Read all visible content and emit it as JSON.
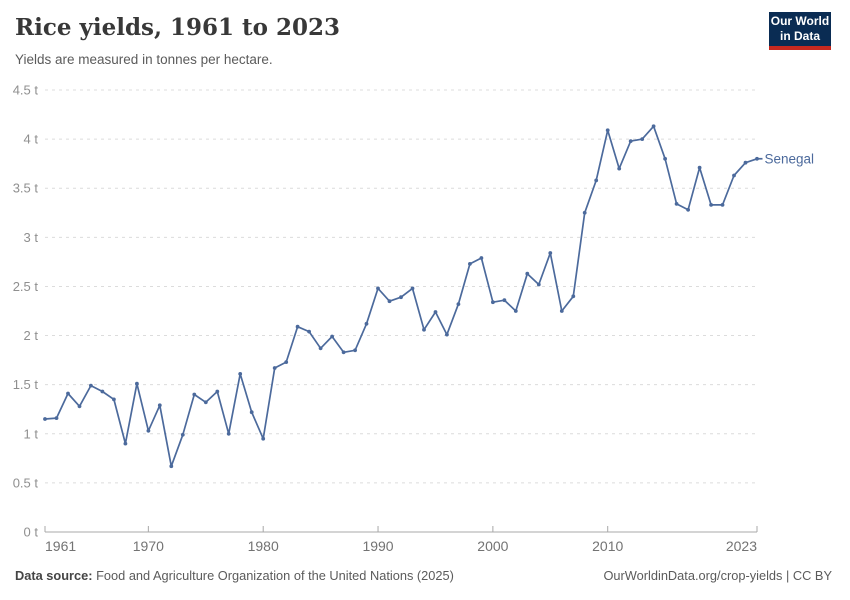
{
  "header": {
    "title": "Rice yields, 1961 to 2023",
    "subtitle": "Yields are measured in tonnes per hectare."
  },
  "logo": {
    "line1": "Our World",
    "line2": "in Data",
    "bg_color": "#0a2c53",
    "accent_color": "#c7291f"
  },
  "chart_data": {
    "type": "line",
    "title": "Rice yields, 1961 to 2023",
    "subtitle": "Yields are measured in tonnes per hectare.",
    "unit": "tonnes per hectare",
    "x_range": [
      1961,
      2023
    ],
    "ylim": [
      0,
      4.5
    ],
    "grid": true,
    "legend_position": "end-label",
    "x": [
      1961,
      1962,
      1963,
      1964,
      1965,
      1966,
      1967,
      1968,
      1969,
      1970,
      1971,
      1972,
      1973,
      1974,
      1975,
      1976,
      1977,
      1978,
      1979,
      1980,
      1981,
      1982,
      1983,
      1984,
      1985,
      1986,
      1987,
      1988,
      1989,
      1990,
      1991,
      1992,
      1993,
      1994,
      1995,
      1996,
      1997,
      1998,
      1999,
      2000,
      2001,
      2002,
      2003,
      2004,
      2005,
      2006,
      2007,
      2008,
      2009,
      2010,
      2011,
      2012,
      2013,
      2014,
      2015,
      2016,
      2017,
      2018,
      2019,
      2020,
      2021,
      2022,
      2023
    ],
    "series": [
      {
        "name": "Senegal",
        "color": "#4c6a9c",
        "values": [
          1.15,
          1.16,
          1.41,
          1.28,
          1.49,
          1.43,
          1.35,
          0.9,
          1.51,
          1.03,
          1.29,
          0.67,
          0.99,
          1.4,
          1.32,
          1.43,
          1.0,
          1.61,
          1.22,
          0.95,
          1.67,
          1.73,
          2.09,
          2.04,
          1.87,
          1.99,
          1.83,
          1.85,
          2.12,
          2.48,
          2.35,
          2.39,
          2.48,
          2.06,
          2.24,
          2.01,
          2.32,
          2.73,
          2.79,
          2.34,
          2.36,
          2.25,
          2.63,
          2.52,
          2.84,
          2.25,
          2.4,
          3.25,
          3.58,
          4.09,
          3.7,
          3.98,
          4.0,
          4.13,
          3.8,
          3.34,
          3.28,
          3.71,
          3.33,
          3.33,
          3.63,
          3.76,
          3.8
        ]
      }
    ],
    "yticks": [
      {
        "value": 0,
        "label": "0 t"
      },
      {
        "value": 0.5,
        "label": "0.5 t"
      },
      {
        "value": 1,
        "label": "1 t"
      },
      {
        "value": 1.5,
        "label": "1.5 t"
      },
      {
        "value": 2,
        "label": "2 t"
      },
      {
        "value": 2.5,
        "label": "2.5 t"
      },
      {
        "value": 3,
        "label": "3 t"
      },
      {
        "value": 3.5,
        "label": "3.5 t"
      },
      {
        "value": 4,
        "label": "4 t"
      },
      {
        "value": 4.5,
        "label": "4.5 t"
      }
    ],
    "xticks": [
      {
        "year": 1961,
        "label": "1961",
        "anchor": "start"
      },
      {
        "year": 1970,
        "label": "1970",
        "anchor": "middle"
      },
      {
        "year": 1980,
        "label": "1980",
        "anchor": "middle"
      },
      {
        "year": 1990,
        "label": "1990",
        "anchor": "middle"
      },
      {
        "year": 2000,
        "label": "2000",
        "anchor": "middle"
      },
      {
        "year": 2010,
        "label": "2010",
        "anchor": "middle"
      },
      {
        "year": 2023,
        "label": "2023",
        "anchor": "end"
      }
    ],
    "colors": {
      "grid": "#dcdcdc",
      "axis": "#a8a8a8",
      "ytick_label": "#8f8f8f",
      "xtick_label": "#737373"
    }
  },
  "footer": {
    "source_label": "Data source:",
    "source_text": "Food and Agriculture Organization of the United Nations (2025)",
    "credit": "OurWorldinData.org/crop-yields | CC BY"
  }
}
